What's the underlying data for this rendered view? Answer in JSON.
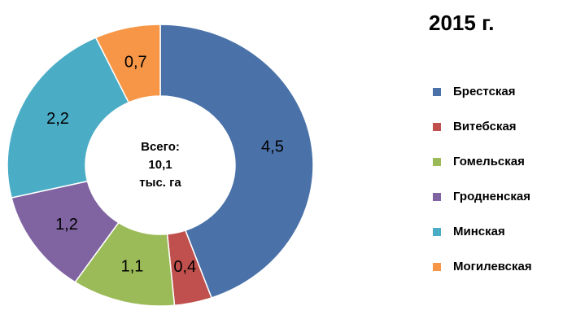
{
  "chart_data": {
    "type": "donut",
    "title": "2015 г.",
    "categories": [
      "Брестская",
      "Витебская",
      "Гомельская",
      "Гродненская",
      "Минская",
      "Могилевская"
    ],
    "values": [
      4.5,
      0.4,
      1.1,
      1.2,
      2.2,
      0.7
    ],
    "value_labels": [
      "4,5",
      "0,4",
      "1,1",
      "1,2",
      "2,2",
      "0,7"
    ],
    "colors": [
      "#4a72a8",
      "#c0504d",
      "#9bbb59",
      "#8064a2",
      "#4bacc6",
      "#f79646"
    ],
    "center_label": [
      "Всего:",
      "10,1",
      "тыс. га"
    ],
    "legend": "right"
  }
}
